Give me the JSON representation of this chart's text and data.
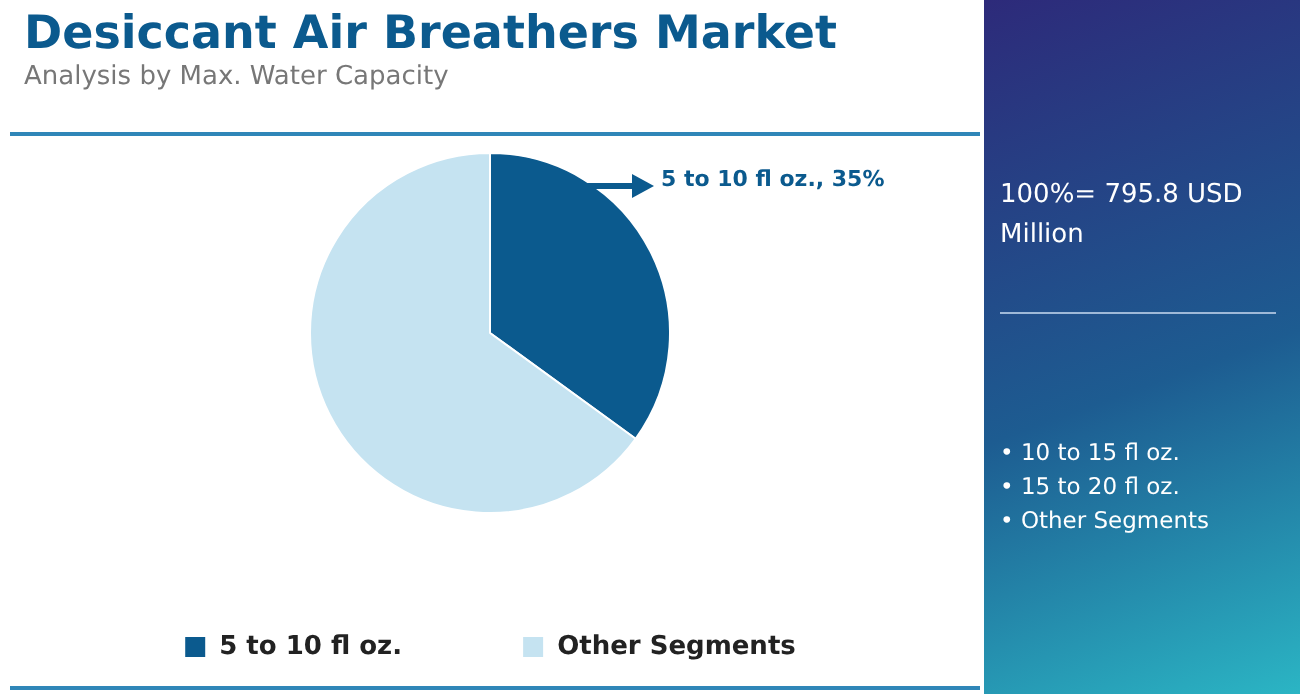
{
  "chart_data": {
    "type": "pie",
    "title": "Desiccant Air Breathers Market",
    "subtitle": "Analysis by Max. Water Capacity",
    "categories": [
      "5 to 10 fl oz.",
      "Other Segments"
    ],
    "values": [
      35,
      65
    ],
    "colors": [
      "#0b5a8e",
      "#c5e3f1"
    ],
    "value_labels": [
      "5 to 10 fl oz., 35%",
      null
    ],
    "legend": "bottom",
    "annotations": [
      "100%= 795.8 USD Million",
      "• 10 to 15 fl oz.",
      "• 15 to 20 fl oz.",
      "• Other Segments"
    ]
  }
}
